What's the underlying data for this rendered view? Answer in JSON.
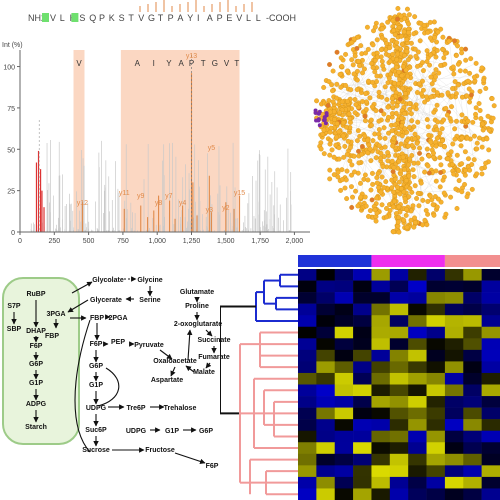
{
  "spectrum": {
    "sequence": [
      "V",
      "L",
      "H",
      "S",
      "Q",
      "P",
      "K",
      "S",
      "T",
      "V",
      "G",
      "T",
      "P",
      "A",
      "Y",
      "I",
      "A",
      "P",
      "E",
      "V",
      "L",
      "L"
    ],
    "n_term": "NH2-",
    "c_term": "-COOH",
    "ylabel": "Int (%)",
    "yticks": [
      "0",
      "25",
      "50",
      "75",
      "100"
    ],
    "xticks": [
      "0",
      "250",
      "500",
      "750",
      "1,000",
      "1,250",
      "1,500",
      "1,750",
      "2,000"
    ],
    "band_labels": [
      "V",
      "A",
      "I",
      "Y",
      "A",
      "P",
      "T",
      "G",
      "V",
      "T"
    ],
    "y_ion_labels": [
      "y15",
      "y12",
      "y11",
      "y9",
      "y8",
      "y7",
      "y5",
      "y4",
      "y3",
      "y2",
      "y13"
    ],
    "colors": {
      "band": "#fbd7c2",
      "bar": "#e08a4a",
      "red_bar": "#d33",
      "gray_bar": "#c9c9c9",
      "highlight": "#6fe06f"
    }
  },
  "network": {
    "colors": {
      "node": "#f6b12e",
      "hub": "#e07a2a",
      "edge": "#cfcfcf",
      "purple": "#7a2aa8"
    }
  },
  "pathway": {
    "nodes": {
      "glycolate": "Glycolate",
      "glycine": "Glycine",
      "rubp": "RuBP",
      "glycerate": "Glycerate",
      "serine": "Serine",
      "s7p": "S7P",
      "pga3": "3PGA",
      "dhap": "DHAP",
      "fbp1": "FBP",
      "pga2": "2PGA",
      "sbp": "SBP",
      "fbp_l": "FBP",
      "f6p_l": "F6P",
      "g6p_l": "G6P",
      "g1p_l": "G1P",
      "adpg": "ADPG",
      "starch": "Starch",
      "f6p": "F6P",
      "pep": "PEP",
      "pyruvate": "Pyruvate",
      "g6p": "G6P",
      "g1p": "G1P",
      "udpg": "UDPG",
      "tre6p": "Tre6P",
      "trehalose": "Trehalose",
      "suc6p": "Suc6P",
      "sucrose": "Sucrose",
      "fructose": "Fructose",
      "f6p_b": "F6P",
      "udpg2": "UDPG",
      "g1p2": "G1P",
      "g6p2": "G6P",
      "glutamate": "Glutamate",
      "proline": "Proline",
      "oxoglut": "2-oxoglutarate",
      "succinate": "Succinate",
      "fumarate": "Fumarate",
      "oxaloacetate": "Oxaloacetate",
      "malate": "Malate",
      "aspartate": "Aspartate"
    },
    "colors": {
      "box": "#e8f4dc",
      "box_border": "#9dcb88"
    }
  },
  "heatmap": {
    "colors": {
      "blue_group": "#2032d8",
      "pink_group": "#ee2fee",
      "salmon_group": "#f28f8f",
      "tree_blue": "#1b2bd0",
      "tree_pink": "#f19a9a"
    }
  }
}
